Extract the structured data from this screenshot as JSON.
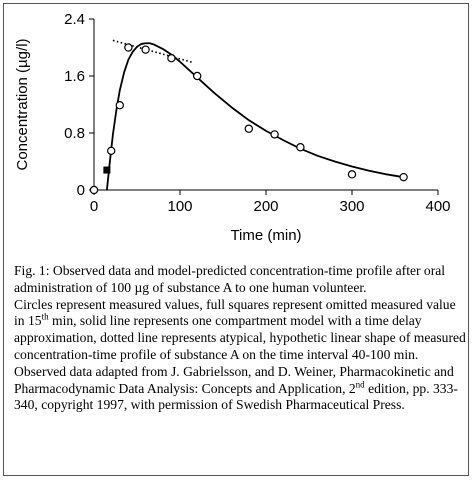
{
  "chart_data": {
    "type": "scatter",
    "xlabel": "Time (min)",
    "ylabel": "Concentration (µg/l)",
    "xlim": [
      0,
      400
    ],
    "ylim": [
      0,
      2.4
    ],
    "xticks": [
      0,
      100,
      200,
      300,
      400
    ],
    "yticks": [
      0,
      0.8,
      1.6,
      2.4
    ],
    "xtick_labels": [
      "0",
      "100",
      "200",
      "300",
      "400"
    ],
    "ytick_labels": [
      "0",
      "0.8",
      "1.6",
      "2.4"
    ],
    "grid": false,
    "series": [
      {
        "marker": "open-circle",
        "x": [
          0,
          20,
          30,
          40,
          60,
          90,
          120,
          180,
          210,
          240,
          300,
          360
        ],
        "y": [
          0.0,
          0.55,
          1.19,
          2.0,
          1.97,
          1.85,
          1.6,
          0.86,
          0.78,
          0.6,
          0.22,
          0.18
        ]
      },
      {
        "marker": "filled-square",
        "x": [
          15
        ],
        "y": [
          0.28
        ]
      },
      {
        "line": "solid",
        "x": [
          15,
          18,
          22,
          26,
          30,
          35,
          40,
          45,
          50,
          55,
          60,
          65,
          70,
          80,
          90,
          100,
          120,
          140,
          160,
          180,
          200,
          220,
          240,
          260,
          280,
          300,
          320,
          340,
          360
        ],
        "y": [
          0.0,
          0.35,
          0.78,
          1.12,
          1.4,
          1.65,
          1.83,
          1.94,
          2.01,
          2.05,
          2.06,
          2.06,
          2.04,
          1.98,
          1.9,
          1.8,
          1.58,
          1.36,
          1.16,
          0.98,
          0.83,
          0.7,
          0.58,
          0.48,
          0.4,
          0.33,
          0.27,
          0.22,
          0.18
        ]
      },
      {
        "line": "dotted",
        "x": [
          22,
          115
        ],
        "y": [
          2.1,
          1.79
        ]
      }
    ]
  },
  "caption": {
    "fig_title": "Fig. 1: Observed data and model-predicted concentration-time profile after oral administration of 100 µg of substance A to one human volunteer.",
    "body_1": "Circles represent measured values, full squares represent omitted measured value in 15",
    "body_1_sup": "th",
    "body_2": " min, solid line represents one compartment model with a time delay approximation, dotted line represents atypical, hypothetic linear shape of measured concentration-time profile of substance A on the time interval 40-100 min. Observed data adapted from J. Gabrielsson, and D. Weiner, Pharmacokinetic and Pharmacodynamic Data Analysis: Concepts and Application, 2",
    "body_2_sup": "nd",
    "body_3": " edition, pp. 333-340, copyright 1997, with permission of Swedish Pharmaceutical Press."
  }
}
